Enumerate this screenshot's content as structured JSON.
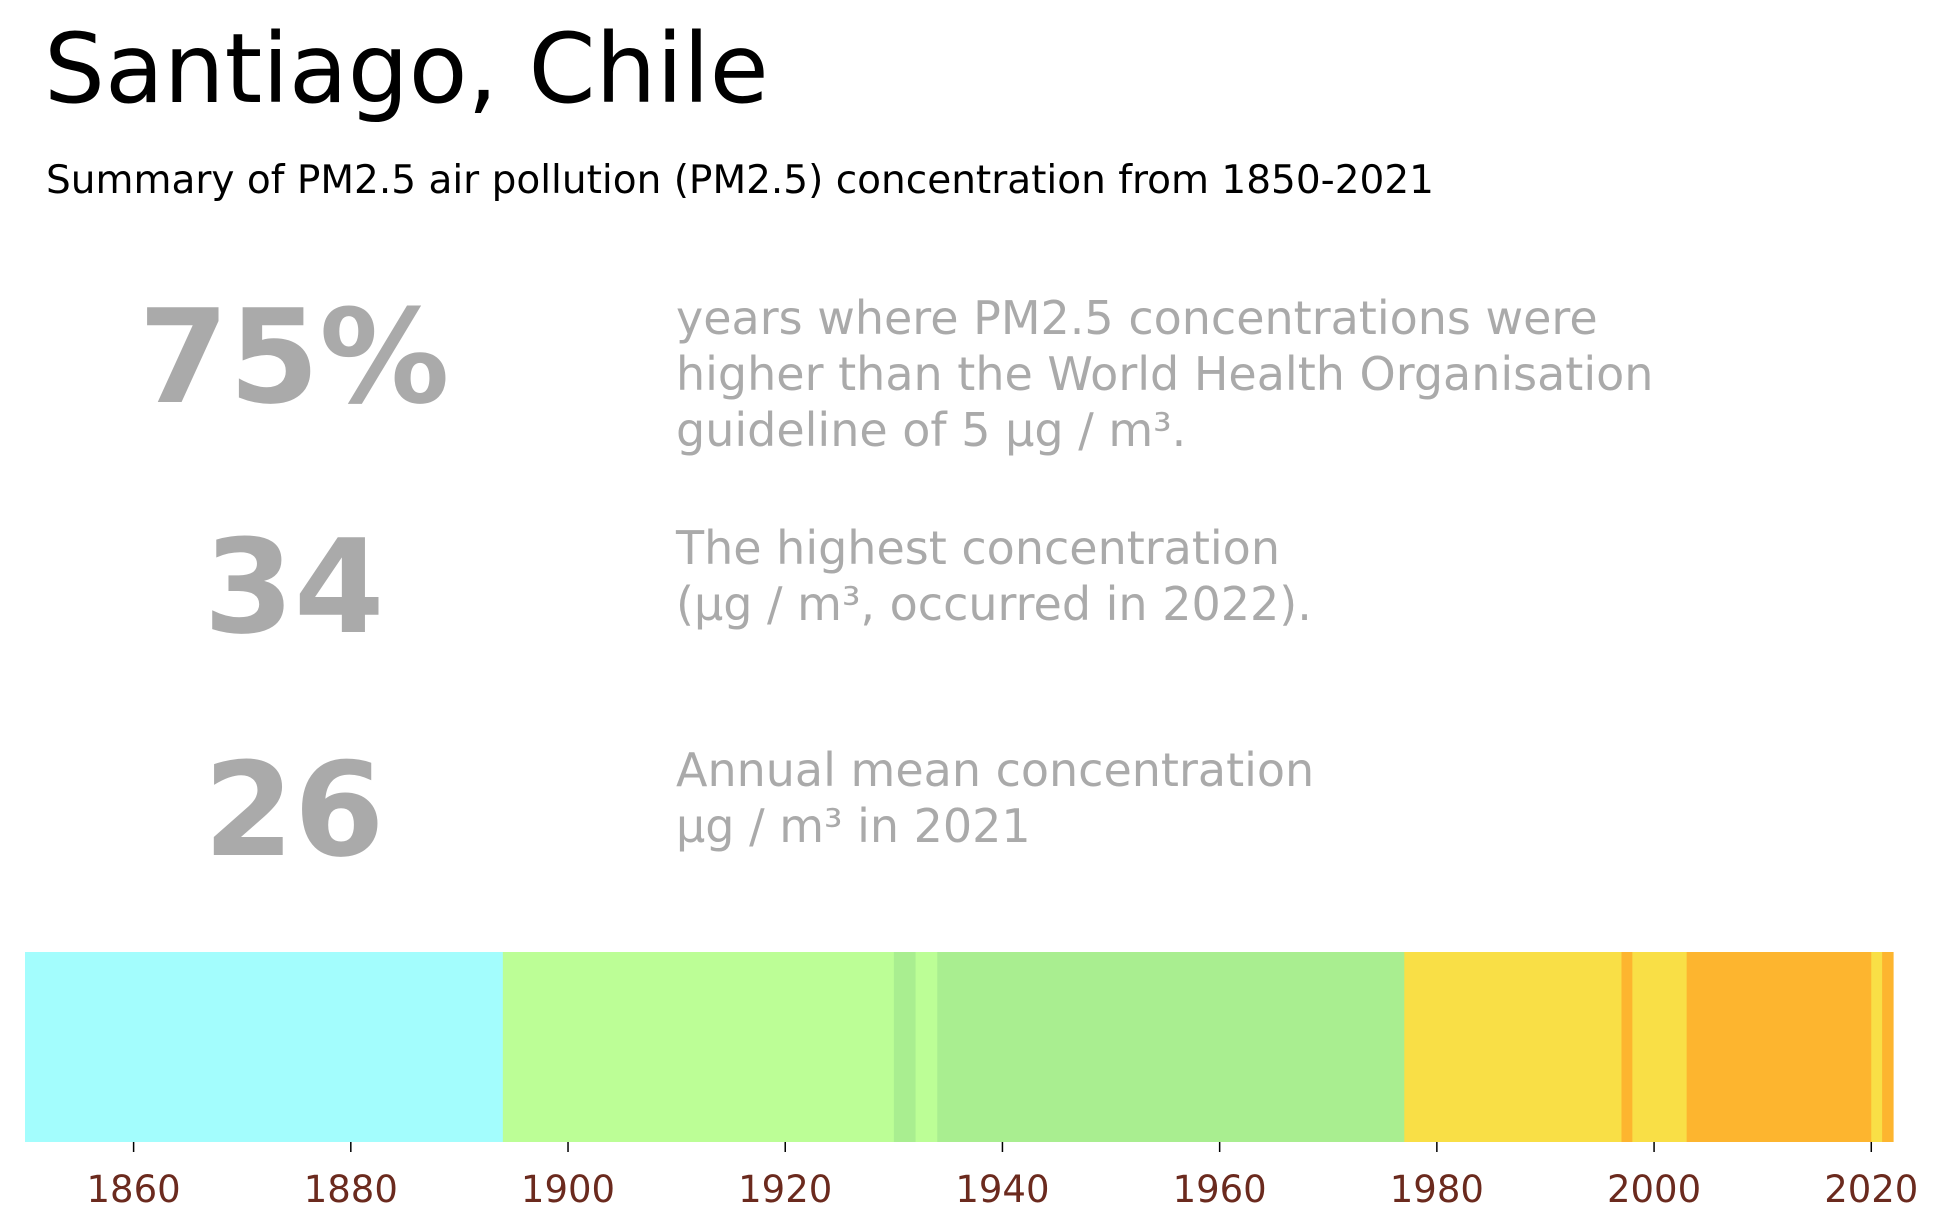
{
  "header": {
    "title": "Santiago, Chile",
    "subtitle": "Summary of PM2.5 air pollution (PM2.5) concentration from 1850-2021"
  },
  "stats": [
    {
      "value": "75%",
      "lines": [
        "years where PM2.5 concentrations were",
        "higher than the World Health Organisation",
        "guideline of 5 μg / m³."
      ]
    },
    {
      "value": "34",
      "lines": [
        "The highest concentration",
        "(μg / m³, occurred in 2022)."
      ]
    },
    {
      "value": "26",
      "lines": [
        "Annual mean concentration",
        "μg / m³ in 2021"
      ]
    }
  ],
  "colors": {
    "text_gray": "#aaaaaa",
    "tick_label": "#6b2a1e"
  },
  "chart_data": {
    "type": "heatmap",
    "xlim": [
      1850,
      2022
    ],
    "x_ticks": [
      1860,
      1880,
      1900,
      1920,
      1940,
      1960,
      1980,
      2000,
      2020
    ],
    "segments": [
      {
        "start": 1850,
        "end": 1894,
        "color": "#a3fdfd"
      },
      {
        "start": 1894,
        "end": 1930,
        "color": "#bcfe96"
      },
      {
        "start": 1930,
        "end": 1932,
        "color": "#a9ee90"
      },
      {
        "start": 1932,
        "end": 1934,
        "color": "#bcfe96"
      },
      {
        "start": 1934,
        "end": 1977,
        "color": "#a9ee90"
      },
      {
        "start": 1977,
        "end": 1997,
        "color": "#f9df46"
      },
      {
        "start": 1997,
        "end": 1998,
        "color": "#fdb52f"
      },
      {
        "start": 1998,
        "end": 2003,
        "color": "#f9df46"
      },
      {
        "start": 2003,
        "end": 2020,
        "color": "#fdb52f"
      },
      {
        "start": 2020,
        "end": 2021,
        "color": "#f9df46"
      },
      {
        "start": 2021,
        "end": 2022,
        "color": "#fdb52f"
      }
    ]
  }
}
